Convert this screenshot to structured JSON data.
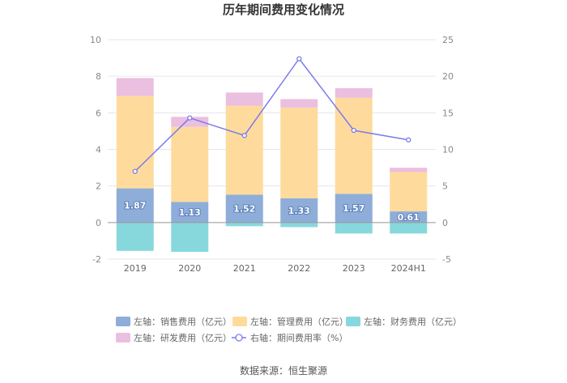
{
  "chart_data": {
    "type": "bar",
    "stacked": true,
    "title": "历年期间费用变化情况",
    "source": "数据来源：恒生聚源",
    "categories": [
      "2019",
      "2020",
      "2021",
      "2022",
      "2023",
      "2024H1"
    ],
    "left_axis": {
      "min": -2,
      "max": 10,
      "ticks": [
        "-2",
        "0",
        "2",
        "4",
        "6",
        "8",
        "10"
      ]
    },
    "right_axis": {
      "min": -5,
      "max": 25,
      "ticks": [
        "-5",
        "0",
        "5",
        "10",
        "15",
        "20",
        "25"
      ]
    },
    "series": [
      {
        "name": "左轴：销售费用（亿元）",
        "axis": "left",
        "color": "#8fadd9",
        "values": [
          1.87,
          1.13,
          1.52,
          1.33,
          1.57,
          0.61
        ],
        "labels": [
          "1.87",
          "1.13",
          "1.52",
          "1.33",
          "1.57",
          "0.61"
        ]
      },
      {
        "name": "左轴：管理费用（亿元）",
        "axis": "left",
        "color": "#fedb9c",
        "values": [
          5.05,
          4.1,
          4.87,
          4.96,
          5.25,
          2.15
        ]
      },
      {
        "name": "左轴：财务费用（亿元）",
        "axis": "left",
        "color": "#87d8dc",
        "values": [
          -1.55,
          -1.6,
          -0.2,
          -0.25,
          -0.6,
          -0.6
        ]
      },
      {
        "name": "左轴：研发费用（亿元）",
        "axis": "left",
        "color": "#ebbfdf",
        "values": [
          0.98,
          0.55,
          0.72,
          0.46,
          0.53,
          0.24
        ]
      },
      {
        "name": "右轴：期间费用率（%）",
        "axis": "right",
        "type": "line",
        "color": "#7b7bea",
        "values": [
          7.0,
          14.3,
          11.9,
          22.4,
          12.6,
          11.3
        ]
      }
    ]
  }
}
